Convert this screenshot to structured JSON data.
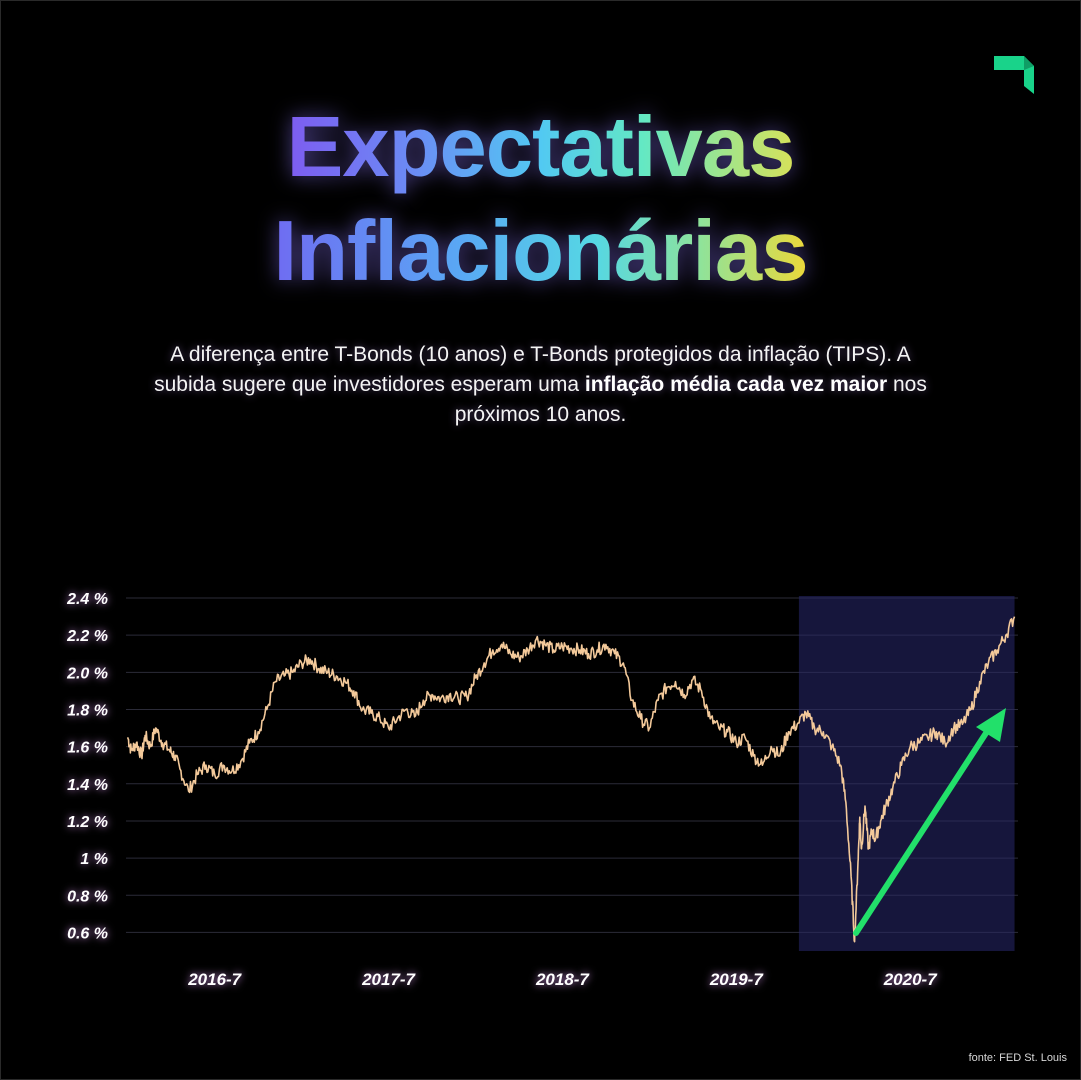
{
  "header": {
    "title_line1": "Expectativas",
    "title_line2": "Inflacionárias"
  },
  "description": {
    "part1": "A diferença entre T-Bonds (10 anos) e T-Bonds protegidos da inflação (TIPS). A subida sugere que investidores esperam uma ",
    "bold": "inflação média cada vez maior",
    "part2": " nos próximos 10 anos."
  },
  "source": "fonte: FED St. Louis",
  "colors": {
    "background": "#000000",
    "line": "#f3c99a",
    "highlight": "#16163c",
    "arrow": "#22e06a",
    "logo": "#19d38a"
  },
  "chart_data": {
    "type": "line",
    "title": "Expectativas Inflacionárias",
    "xlabel": "",
    "ylabel": "",
    "ylim": [
      0.5,
      2.4
    ],
    "y_ticks": [
      "2.4 %",
      "2.2 %",
      "2.0 %",
      "1.8 %",
      "1.6 %",
      "1.4 %",
      "1.2 %",
      "1 %",
      "0.8 %",
      "0.6 %"
    ],
    "y_tick_values": [
      2.4,
      2.2,
      2.0,
      1.8,
      1.6,
      1.4,
      1.2,
      1.0,
      0.8,
      0.6
    ],
    "x_ticks": [
      "2016-7",
      "2017-7",
      "2018-7",
      "2019-7",
      "2020-7"
    ],
    "x_tick_values": [
      2016.5,
      2017.5,
      2018.5,
      2019.5,
      2020.5
    ],
    "xlim": [
      2015.99,
      2021.12
    ],
    "grid": true,
    "highlight_range": [
      2019.86,
      2021.1
    ],
    "annotation": "rising arrow",
    "series": [
      {
        "x": [
          2016.0,
          2016.02,
          2016.05,
          2016.08,
          2016.1,
          2016.13,
          2016.16,
          2016.2,
          2016.24,
          2016.27,
          2016.3,
          2016.35,
          2016.4,
          2016.45,
          2016.5,
          2016.55,
          2016.6,
          2016.65,
          2016.7,
          2016.75,
          2016.8,
          2016.85,
          2016.9,
          2016.95,
          2017.0,
          2017.05,
          2017.1,
          2017.15,
          2017.2,
          2017.25,
          2017.3,
          2017.35,
          2017.4,
          2017.45,
          2017.5,
          2017.55,
          2017.6,
          2017.65,
          2017.7,
          2017.75,
          2017.8,
          2017.85,
          2017.9,
          2017.95,
          2018.0,
          2018.05,
          2018.1,
          2018.15,
          2018.2,
          2018.25,
          2018.3,
          2018.35,
          2018.4,
          2018.45,
          2018.5,
          2018.55,
          2018.6,
          2018.65,
          2018.7,
          2018.75,
          2018.8,
          2018.85,
          2018.9,
          2018.95,
          2019.0,
          2019.05,
          2019.1,
          2019.15,
          2019.2,
          2019.25,
          2019.3,
          2019.35,
          2019.4,
          2019.45,
          2019.5,
          2019.55,
          2019.6,
          2019.65,
          2019.7,
          2019.75,
          2019.8,
          2019.85,
          2019.9,
          2019.95,
          2020.0,
          2020.05,
          2020.1,
          2020.13,
          2020.16,
          2020.18,
          2020.2,
          2020.21,
          2020.22,
          2020.24,
          2020.26,
          2020.28,
          2020.3,
          2020.33,
          2020.36,
          2020.4,
          2020.45,
          2020.5,
          2020.55,
          2020.6,
          2020.65,
          2020.7,
          2020.75,
          2020.8,
          2020.85,
          2020.9,
          2020.95,
          2021.0,
          2021.05,
          2021.1
        ],
        "values": [
          1.65,
          1.58,
          1.62,
          1.55,
          1.66,
          1.6,
          1.7,
          1.62,
          1.58,
          1.55,
          1.48,
          1.36,
          1.45,
          1.5,
          1.45,
          1.5,
          1.47,
          1.52,
          1.62,
          1.68,
          1.8,
          1.95,
          1.98,
          2.0,
          2.05,
          2.07,
          2.02,
          2.0,
          1.98,
          1.95,
          1.9,
          1.8,
          1.78,
          1.75,
          1.7,
          1.75,
          1.8,
          1.76,
          1.85,
          1.88,
          1.86,
          1.88,
          1.86,
          1.87,
          1.97,
          2.05,
          2.12,
          2.15,
          2.1,
          2.08,
          2.12,
          2.18,
          2.15,
          2.12,
          2.14,
          2.13,
          2.12,
          2.1,
          2.12,
          2.15,
          2.1,
          2.05,
          1.85,
          1.75,
          1.7,
          1.85,
          1.92,
          1.95,
          1.88,
          1.96,
          1.9,
          1.75,
          1.7,
          1.68,
          1.62,
          1.65,
          1.55,
          1.5,
          1.6,
          1.55,
          1.68,
          1.72,
          1.78,
          1.7,
          1.68,
          1.6,
          1.5,
          1.3,
          0.9,
          0.55,
          0.98,
          1.22,
          1.05,
          1.28,
          1.05,
          1.15,
          1.1,
          1.2,
          1.28,
          1.38,
          1.5,
          1.6,
          1.62,
          1.65,
          1.68,
          1.62,
          1.7,
          1.72,
          1.8,
          1.95,
          2.05,
          2.12,
          2.2,
          2.3
        ]
      }
    ]
  }
}
